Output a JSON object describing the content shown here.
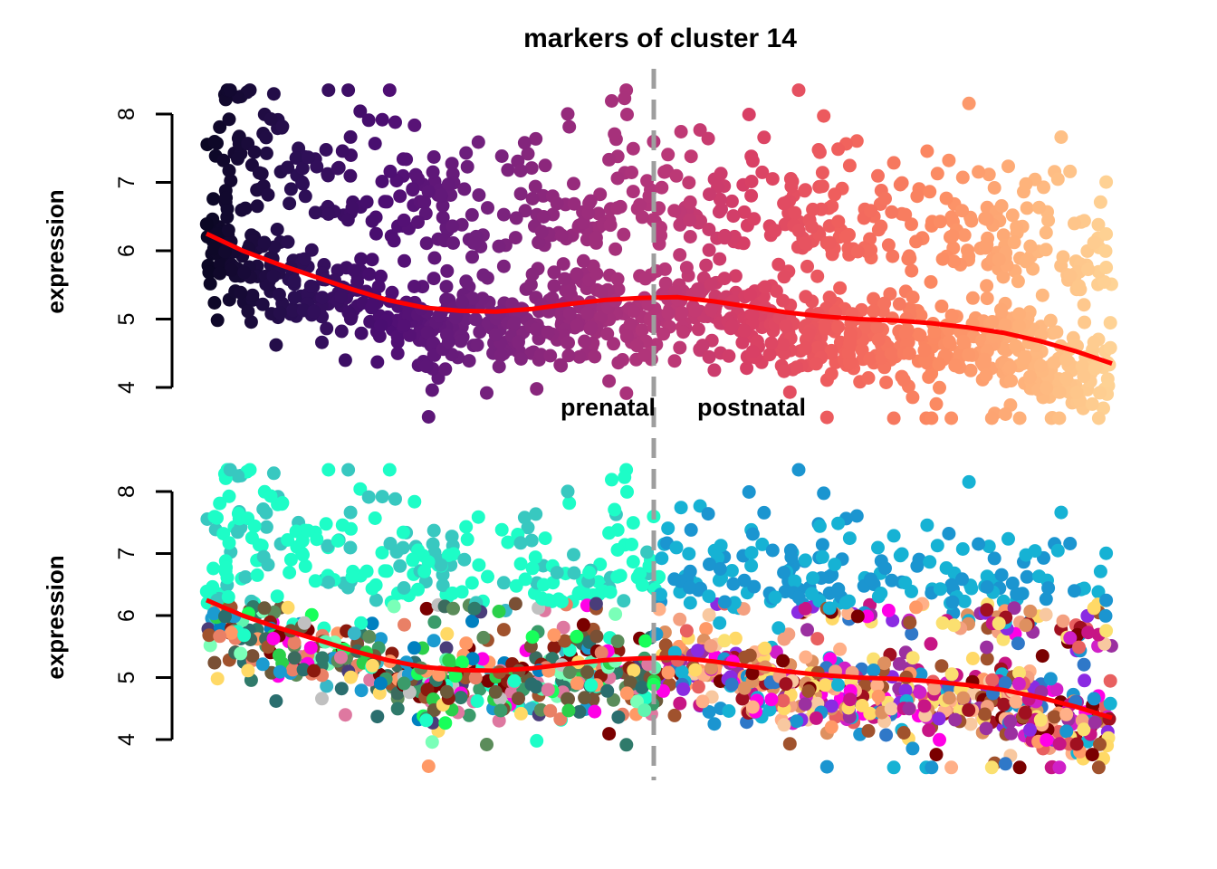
{
  "title": "markers of cluster 14",
  "divider": {
    "x": 0.5,
    "color": "#9e9e9e"
  },
  "annotations": {
    "left": "prenatal",
    "right": "postnatal"
  },
  "chart_data": [
    {
      "type": "scatter",
      "id": "top",
      "ylabel": "expression",
      "xlim": [
        0,
        1
      ],
      "ylim": [
        3.5,
        8.5
      ],
      "yticks": [
        4,
        5,
        6,
        7,
        8
      ],
      "color_mode": "time-gradient",
      "palette": [
        "#0b0724",
        "#2b0f54",
        "#4d0e73",
        "#71207d",
        "#952a7c",
        "#b6377a",
        "#d83f65",
        "#f0605d",
        "#fb8861",
        "#feb17a",
        "#fed395"
      ],
      "trend_color": "#ff0000",
      "trend": [
        [
          0.0,
          6.25
        ],
        [
          0.04,
          6.0
        ],
        [
          0.08,
          5.8
        ],
        [
          0.12,
          5.62
        ],
        [
          0.16,
          5.44
        ],
        [
          0.2,
          5.28
        ],
        [
          0.24,
          5.17
        ],
        [
          0.28,
          5.12
        ],
        [
          0.32,
          5.11
        ],
        [
          0.36,
          5.15
        ],
        [
          0.4,
          5.22
        ],
        [
          0.44,
          5.28
        ],
        [
          0.48,
          5.31
        ],
        [
          0.52,
          5.32
        ],
        [
          0.56,
          5.26
        ],
        [
          0.6,
          5.18
        ],
        [
          0.64,
          5.1
        ],
        [
          0.68,
          5.04
        ],
        [
          0.72,
          5.0
        ],
        [
          0.76,
          4.98
        ],
        [
          0.8,
          4.94
        ],
        [
          0.84,
          4.88
        ],
        [
          0.88,
          4.8
        ],
        [
          0.92,
          4.68
        ],
        [
          0.96,
          4.53
        ],
        [
          1.0,
          4.35
        ]
      ]
    },
    {
      "type": "scatter",
      "id": "bottom",
      "ylabel": "expression",
      "xlim": [
        0,
        1
      ],
      "ylim": [
        3.4,
        8.6
      ],
      "yticks": [
        4,
        5,
        6,
        7,
        8
      ],
      "color_mode": "cell-type",
      "prenatal_colors": [
        "#1dfdc7",
        "#5ff5b0",
        "#7affb8",
        "#2f7a6a",
        "#3b6b5e",
        "#5b8c5a",
        "#6b5a3a",
        "#7a5035",
        "#8b1a0e",
        "#a0522d",
        "#2bd04a",
        "#18ff5a",
        "#3a9b6a",
        "#2a6e6e",
        "#4a3d7a",
        "#ff9966",
        "#e98066",
        "#ff00e6",
        "#ffd966",
        "#1b9bd0",
        "#38b8c8",
        "#0080c0",
        "#7a0000",
        "#de78a0",
        "#c0c0c0"
      ],
      "postnatal_colors": [
        "#16b2d4",
        "#1b95d0",
        "#2f78c8",
        "#7a0000",
        "#a01020",
        "#ff9966",
        "#ffb088",
        "#f4a080",
        "#e86060",
        "#ff00e6",
        "#d020c8",
        "#9b30a0",
        "#8a2be2",
        "#c71585",
        "#ffd966",
        "#fbe070",
        "#f8c8a0",
        "#a0522d",
        "#de9060"
      ],
      "trend_color": "#ff0000",
      "trend": [
        [
          0.0,
          6.25
        ],
        [
          0.04,
          6.0
        ],
        [
          0.08,
          5.8
        ],
        [
          0.12,
          5.62
        ],
        [
          0.16,
          5.44
        ],
        [
          0.2,
          5.28
        ],
        [
          0.24,
          5.17
        ],
        [
          0.28,
          5.12
        ],
        [
          0.32,
          5.11
        ],
        [
          0.36,
          5.15
        ],
        [
          0.4,
          5.22
        ],
        [
          0.44,
          5.28
        ],
        [
          0.48,
          5.31
        ],
        [
          0.52,
          5.32
        ],
        [
          0.56,
          5.26
        ],
        [
          0.6,
          5.18
        ],
        [
          0.64,
          5.1
        ],
        [
          0.68,
          5.04
        ],
        [
          0.72,
          5.0
        ],
        [
          0.76,
          4.98
        ],
        [
          0.8,
          4.94
        ],
        [
          0.84,
          4.88
        ],
        [
          0.88,
          4.8
        ],
        [
          0.92,
          4.68
        ],
        [
          0.96,
          4.53
        ],
        [
          1.0,
          4.35
        ]
      ]
    }
  ]
}
